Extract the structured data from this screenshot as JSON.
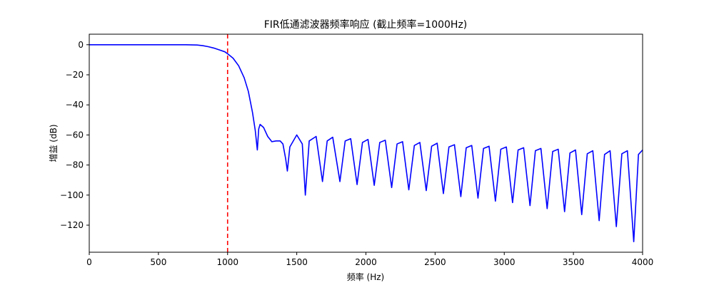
{
  "chart_data": {
    "type": "line",
    "title": "FIR低通滤波器频率响应 (截止频率=1000Hz)",
    "xlabel": "频率 (Hz)",
    "ylabel": "增益 (dB)",
    "xlim": [
      0,
      4000
    ],
    "ylim": [
      -138,
      7
    ],
    "xticks": [
      0,
      500,
      1000,
      1500,
      2000,
      2500,
      3000,
      3500,
      4000
    ],
    "yticks": [
      0,
      -20,
      -40,
      -60,
      -80,
      -100,
      -120
    ],
    "grid": false,
    "cutoff_line": {
      "x": 1000,
      "color": "#ff0000",
      "style": "dashed"
    },
    "series": [
      {
        "color": "#0000ff",
        "x": [
          0,
          100,
          200,
          300,
          400,
          500,
          600,
          700,
          780,
          820,
          860,
          900,
          940,
          980,
          1000,
          1040,
          1080,
          1120,
          1150,
          1180,
          1200,
          1215,
          1225,
          1235,
          1260,
          1290,
          1320,
          1350,
          1380,
          1400,
          1420,
          1432,
          1450,
          1500,
          1540,
          1562,
          1590,
          1640,
          1686,
          1720,
          1760,
          1812,
          1850,
          1890,
          1936,
          1975,
          2015,
          2060,
          2100,
          2140,
          2186,
          2225,
          2265,
          2310,
          2350,
          2390,
          2436,
          2475,
          2515,
          2560,
          2600,
          2640,
          2686,
          2725,
          2765,
          2810,
          2850,
          2890,
          2936,
          2975,
          3015,
          3060,
          3100,
          3140,
          3186,
          3225,
          3265,
          3310,
          3350,
          3390,
          3436,
          3475,
          3515,
          3560,
          3600,
          3640,
          3686,
          3725,
          3765,
          3810,
          3850,
          3890,
          3936,
          3970,
          4000
        ],
        "y": [
          0,
          0,
          0,
          0,
          0,
          0,
          0,
          0,
          -0.2,
          -0.6,
          -1.3,
          -2.2,
          -3.4,
          -4.7,
          -6,
          -9,
          -14,
          -22,
          -31,
          -45,
          -57,
          -70,
          -56,
          -53,
          -55,
          -61,
          -64.5,
          -64,
          -64,
          -66,
          -76,
          -84,
          -68,
          -60,
          -66,
          -100,
          -64,
          -61,
          -91,
          -64,
          -61.5,
          -91,
          -64,
          -62.5,
          -93,
          -65,
          -63,
          -93.5,
          -65,
          -63.5,
          -95,
          -66,
          -64.5,
          -96.5,
          -67,
          -65,
          -97,
          -67.5,
          -65.5,
          -99,
          -68,
          -66.5,
          -101,
          -68.5,
          -67,
          -102,
          -69,
          -67.5,
          -104,
          -69.5,
          -68,
          -105,
          -70,
          -68.5,
          -107,
          -70.5,
          -69,
          -109,
          -71,
          -69.5,
          -111,
          -72,
          -70,
          -113,
          -72.5,
          -70.5,
          -117,
          -73,
          -70.5,
          -121,
          -72.5,
          -70.5,
          -131,
          -73,
          -70
        ]
      }
    ]
  }
}
